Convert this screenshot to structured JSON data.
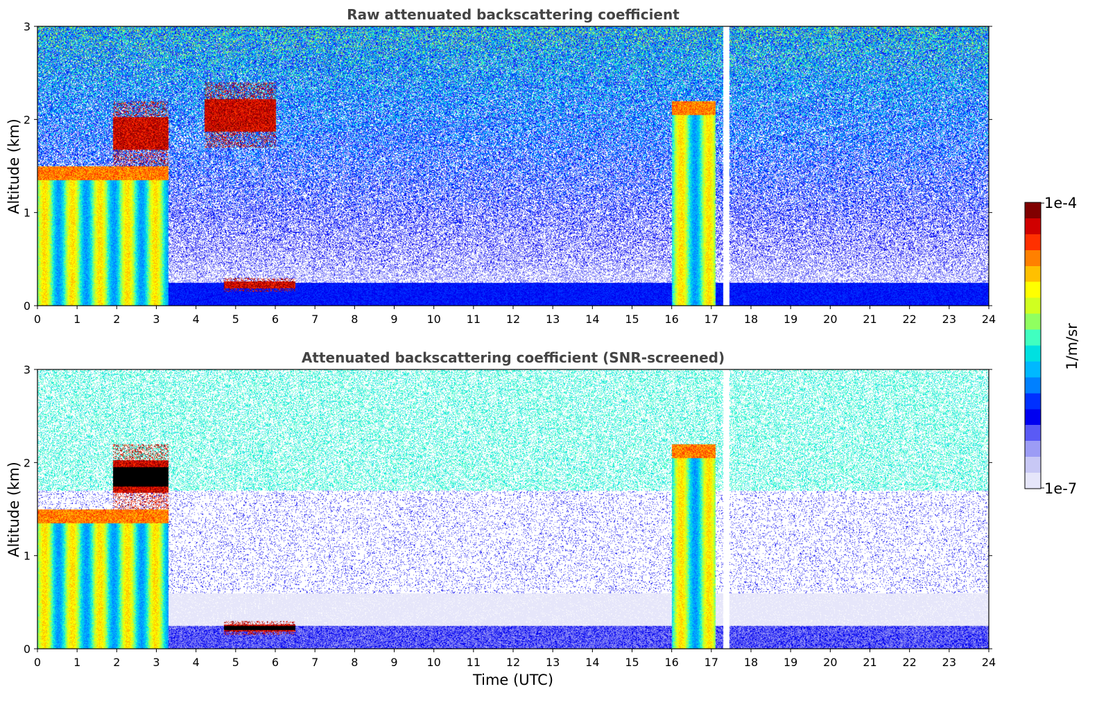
{
  "colors": {
    "palette": [
      "#e6e6fa",
      "#c8c8f5",
      "#9c9cf5",
      "#5a5af5",
      "#0000f0",
      "#0030ff",
      "#0080ff",
      "#00b8ff",
      "#00e0e0",
      "#40ffc0",
      "#90ff60",
      "#d0ff20",
      "#ffff00",
      "#ffc000",
      "#ff8000",
      "#ff3000",
      "#d00000",
      "#800000"
    ],
    "background": "#ffffff",
    "title_text": "#444444"
  },
  "chart_data": [
    {
      "type": "heatmap",
      "title": "Raw attenuated backscattering coefficient",
      "xlabel": "",
      "ylabel": "Altitude (km)",
      "xlim": [
        0,
        24
      ],
      "ylim": [
        0,
        3
      ],
      "x_ticks": [
        "0",
        "1",
        "2",
        "3",
        "4",
        "5",
        "6",
        "7",
        "8",
        "9",
        "10",
        "11",
        "12",
        "13",
        "14",
        "15",
        "16",
        "17",
        "18",
        "19",
        "20",
        "21",
        "22",
        "23",
        "24"
      ],
      "y_ticks": [
        "0",
        "1",
        "2",
        "3"
      ],
      "features": [
        {
          "kind": "aerosol_layer",
          "x_range": [
            0,
            3.3
          ],
          "altitude_top_km": 1.5,
          "level": "high"
        },
        {
          "kind": "cloud",
          "x_range": [
            1.9,
            3.3
          ],
          "altitude_km": [
            1.5,
            2.2
          ],
          "level": "very_high"
        },
        {
          "kind": "cloud",
          "x_range": [
            4.7,
            6.5
          ],
          "altitude_km": [
            0.15,
            0.3
          ],
          "level": "very_high"
        },
        {
          "kind": "cloud",
          "x_range": [
            4.2,
            6.0
          ],
          "altitude_km": [
            1.7,
            2.4
          ],
          "level": "very_high"
        },
        {
          "kind": "aerosol_layer",
          "x_range": [
            16.0,
            17.1
          ],
          "altitude_top_km": 2.2,
          "level": "high"
        },
        {
          "kind": "data_gap",
          "x_range": [
            17.3,
            17.45
          ]
        }
      ]
    },
    {
      "type": "heatmap",
      "title": "Attenuated backscattering coefficient (SNR-screened)",
      "xlabel": "Time (UTC)",
      "ylabel": "Altitude (km)",
      "xlim": [
        0,
        24
      ],
      "ylim": [
        0,
        3
      ],
      "x_ticks": [
        "0",
        "1",
        "2",
        "3",
        "4",
        "5",
        "6",
        "7",
        "8",
        "9",
        "10",
        "11",
        "12",
        "13",
        "14",
        "15",
        "16",
        "17",
        "18",
        "19",
        "20",
        "21",
        "22",
        "23",
        "24"
      ],
      "y_ticks": [
        "0",
        "1",
        "2",
        "3"
      ],
      "features": [
        {
          "kind": "aerosol_layer",
          "x_range": [
            0,
            3.3
          ],
          "altitude_top_km": 1.5,
          "level": "high"
        },
        {
          "kind": "cloud",
          "x_range": [
            1.9,
            3.3
          ],
          "altitude_km": [
            1.5,
            2.2
          ],
          "level": "saturated"
        },
        {
          "kind": "cloud",
          "x_range": [
            4.7,
            6.5
          ],
          "altitude_km": [
            0.15,
            0.3
          ],
          "level": "saturated"
        },
        {
          "kind": "aerosol_layer",
          "x_range": [
            16.0,
            17.1
          ],
          "altitude_top_km": 2.2,
          "level": "high"
        },
        {
          "kind": "data_gap",
          "x_range": [
            17.3,
            17.45
          ]
        }
      ]
    }
  ],
  "colorbar": {
    "label": "1/m/sr",
    "max_label": "1e-4",
    "min_label": "1e-7",
    "scale": "log",
    "range": [
      1e-07,
      0.0001
    ],
    "colormap": "jet-like"
  }
}
